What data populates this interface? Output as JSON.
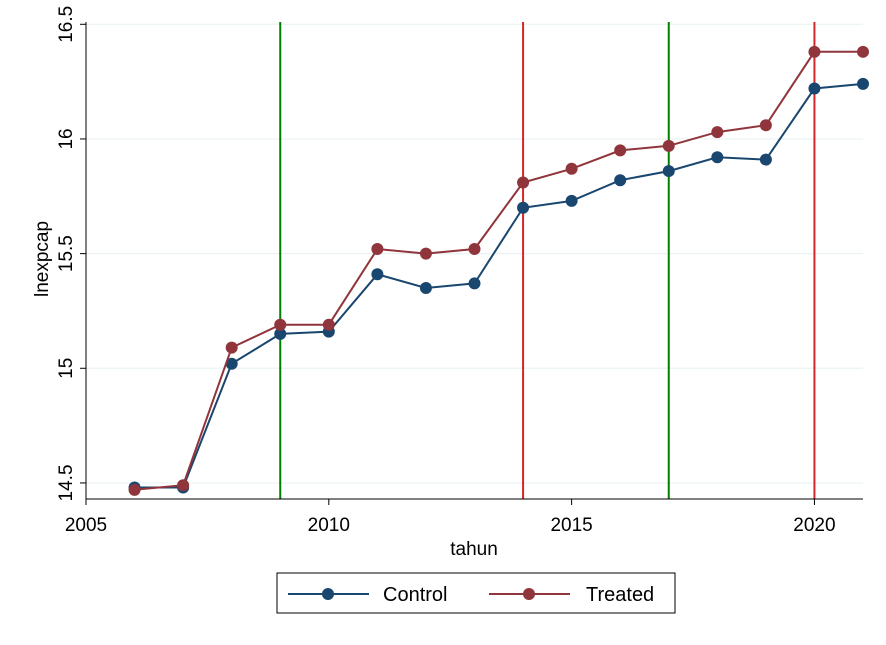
{
  "chart_data": {
    "type": "line",
    "xlabel": "tahun",
    "ylabel": "lnexpcap",
    "xlim": [
      2005,
      2021
    ],
    "ylim": [
      14.43,
      16.51
    ],
    "xticks": [
      2005,
      2010,
      2015,
      2020
    ],
    "yticks": [
      14.5,
      15,
      15.5,
      16,
      16.5
    ],
    "x_tick_labels": [
      "2005",
      "2010",
      "2015",
      "2020"
    ],
    "y_tick_labels": [
      "14.5",
      "15",
      "15.5",
      "16",
      "16.5"
    ],
    "grid": "horizontal",
    "legend_position": "bottom",
    "x": [
      2006,
      2007,
      2008,
      2009,
      2010,
      2011,
      2012,
      2013,
      2014,
      2015,
      2016,
      2017,
      2018,
      2019,
      2020,
      2021
    ],
    "series": [
      {
        "name": "Control",
        "color": "#1a476f",
        "values": [
          14.48,
          14.48,
          15.02,
          15.15,
          15.16,
          15.41,
          15.35,
          15.37,
          15.7,
          15.73,
          15.82,
          15.86,
          15.92,
          15.91,
          16.22,
          16.24
        ]
      },
      {
        "name": "Treated",
        "color": "#90353b",
        "values": [
          14.47,
          14.49,
          15.09,
          15.19,
          15.19,
          15.52,
          15.5,
          15.52,
          15.81,
          15.87,
          15.95,
          15.97,
          16.03,
          16.06,
          16.38,
          16.38
        ]
      }
    ],
    "reference_lines": [
      {
        "x": 2009,
        "color": "#008000"
      },
      {
        "x": 2014,
        "color": "#d62728"
      },
      {
        "x": 2017,
        "color": "#008000"
      },
      {
        "x": 2020,
        "color": "#d62728"
      }
    ]
  }
}
